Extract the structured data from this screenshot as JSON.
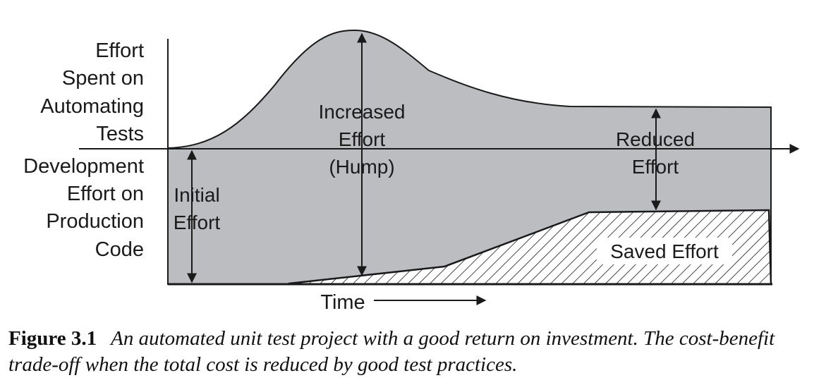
{
  "diagram": {
    "y_axis_upper_label": [
      "Effort",
      "Spent on",
      "Automating",
      "Tests"
    ],
    "y_axis_lower_label": [
      "Development",
      "Effort on",
      "Production",
      "Code"
    ],
    "x_axis_label": "Time",
    "annotations": {
      "initial_effort": [
        "Initial",
        "Effort"
      ],
      "increased_effort": [
        "Increased",
        "Effort",
        "(Hump)"
      ],
      "reduced_effort": [
        "Reduced",
        "Effort"
      ],
      "saved_effort": "Saved Effort"
    },
    "colors": {
      "effort_fill": "#bcbdc0",
      "line": "#1a1a1a",
      "hatch": "#1a1a1a"
    }
  },
  "caption": {
    "number": "Figure 3.1",
    "text": "An automated unit test project with a good return on investment. The cost-benefit trade-off when the total cost is reduced by good test practices."
  }
}
